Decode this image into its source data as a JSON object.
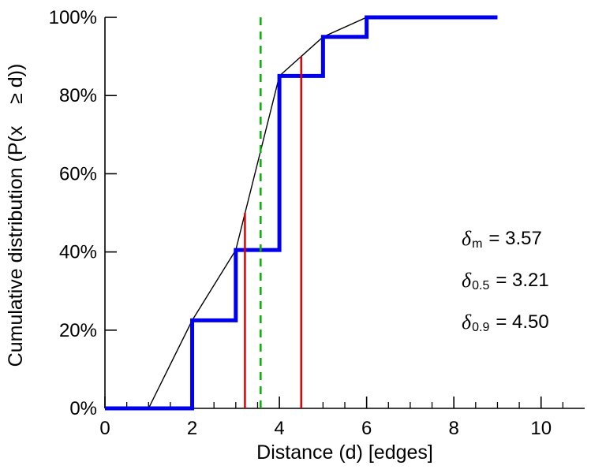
{
  "chart_data": {
    "type": "line",
    "title": "",
    "xlabel": "Distance (d) [edges]",
    "ylabel": "Cumulative distribution (P(x    ≥ d))",
    "xlim": [
      0,
      11
    ],
    "ylim": [
      0,
      100
    ],
    "x_ticks": [
      0,
      2,
      4,
      6,
      8,
      10
    ],
    "x_tick_labels": [
      "0",
      "2",
      "4",
      "6",
      "8",
      "10"
    ],
    "x_minor_ticks": [
      0.5,
      1,
      1.5,
      2.5,
      3,
      3.5,
      4.5,
      5,
      5.5,
      6.5,
      7,
      7.5,
      8.5,
      9,
      9.5,
      10.5
    ],
    "y_ticks": [
      0,
      20,
      40,
      60,
      80,
      100
    ],
    "y_tick_labels": [
      "0%",
      "20%",
      "40%",
      "60%",
      "80%",
      "100%"
    ],
    "axis_color": "#000000",
    "background": "#ffffff",
    "series": [
      {
        "name": "empirical-cdf-steps",
        "style": "step",
        "color": "#0000ee",
        "width": 5,
        "points": [
          [
            0,
            0
          ],
          [
            2,
            0
          ],
          [
            2,
            22.5
          ],
          [
            3,
            22.5
          ],
          [
            3,
            40.5
          ],
          [
            4,
            40.5
          ],
          [
            4,
            85
          ],
          [
            5,
            85
          ],
          [
            5,
            95
          ],
          [
            6,
            95
          ],
          [
            6,
            100
          ],
          [
            9,
            100
          ]
        ]
      },
      {
        "name": "linear-interpolation",
        "style": "line",
        "color": "#000000",
        "width": 1.4,
        "points": [
          [
            1,
            0
          ],
          [
            2,
            22.5
          ],
          [
            3,
            40.5
          ],
          [
            4,
            85
          ],
          [
            5,
            95
          ],
          [
            6,
            100
          ],
          [
            9,
            100
          ]
        ]
      }
    ],
    "vlines": [
      {
        "name": "mean-distance",
        "x": 3.57,
        "y_from": 0,
        "y_to": 100,
        "color": "#00b400",
        "width": 2.5,
        "dash": "10,8"
      },
      {
        "name": "median-distance",
        "x": 3.21,
        "y_from": 0,
        "y_to": 50,
        "color": "#e00000",
        "width": 2.5,
        "dash": ""
      },
      {
        "name": "p90-distance",
        "x": 4.5,
        "y_from": 0,
        "y_to": 90,
        "color": "#e00000",
        "width": 2.5,
        "dash": ""
      }
    ],
    "annotations": [
      {
        "symbol": "δ",
        "subscript": "m",
        "value": "= 3.57"
      },
      {
        "symbol": "δ",
        "subscript": "0.5",
        "value": "= 3.21"
      },
      {
        "symbol": "δ",
        "subscript": "0.9",
        "value": "= 4.50"
      }
    ]
  }
}
